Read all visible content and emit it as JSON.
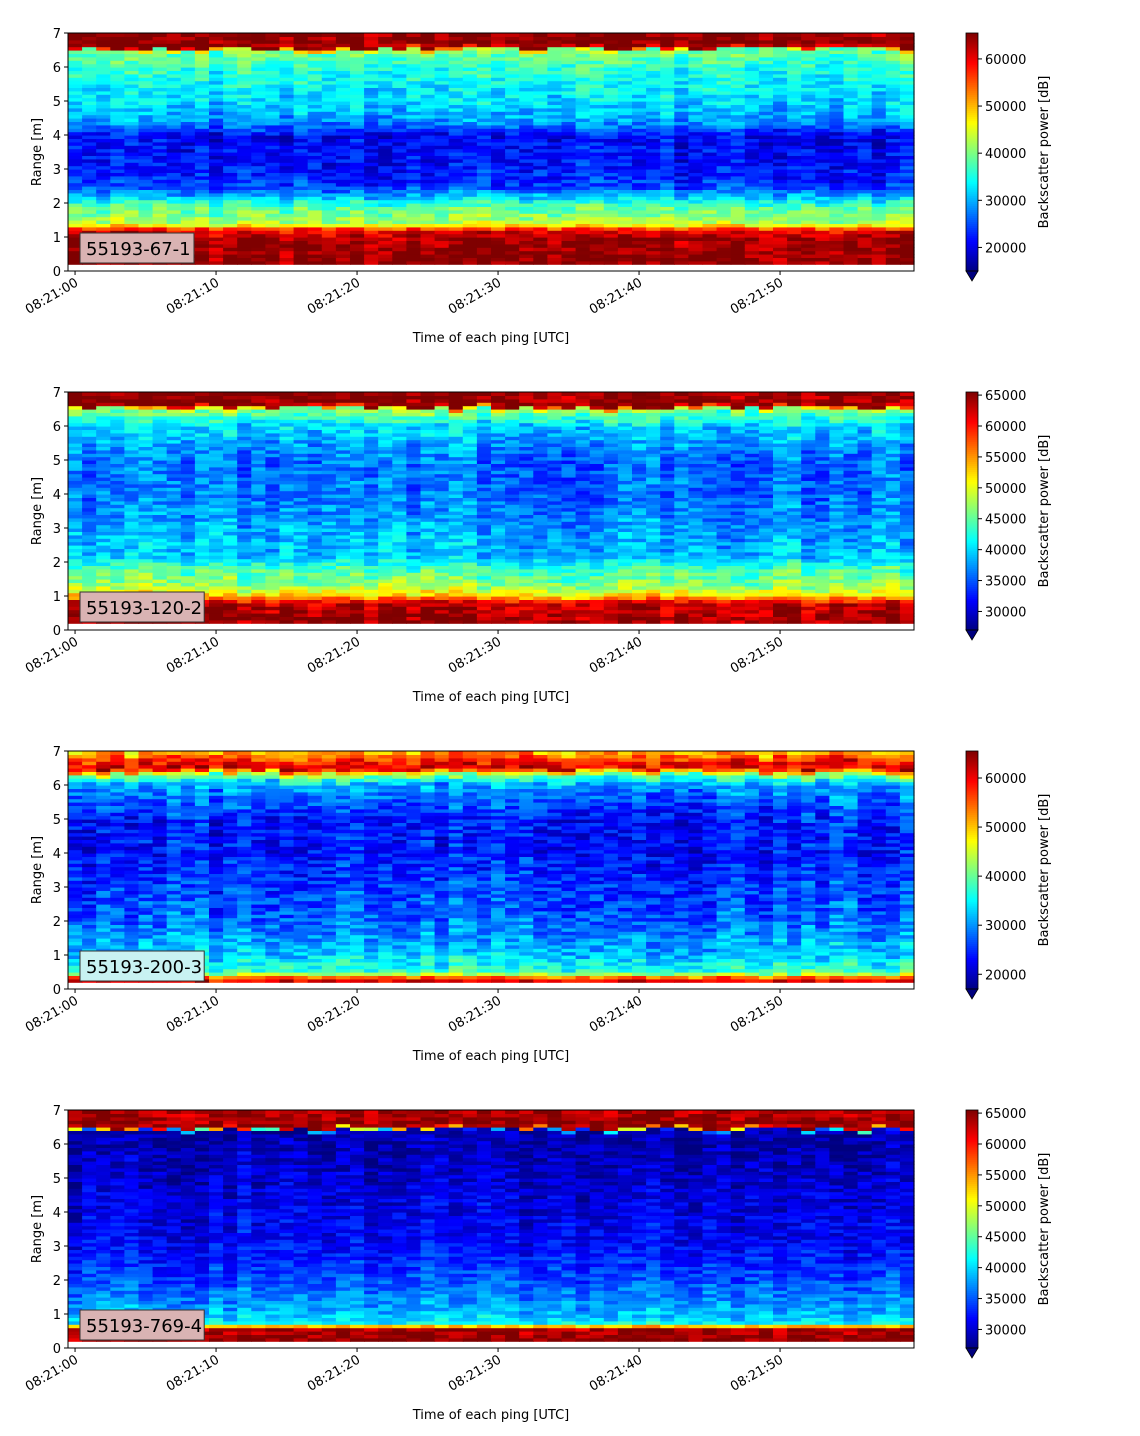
{
  "figure": {
    "background": "#ffffff",
    "colormap": "jet",
    "colormap_stops": [
      "#00007f",
      "#0000ff",
      "#007fff",
      "#00ffff",
      "#7fff7f",
      "#ffff00",
      "#ff7f00",
      "#ff0000",
      "#7f0000"
    ]
  },
  "chart_data": [
    {
      "type": "heatmap",
      "xlabel": "Time of each ping [UTC]",
      "ylabel": "Range [m]",
      "colorbar_label": "Backscatter power [dB]",
      "annotation": "55193-67-1",
      "annotation_bg": "#d9b3b3",
      "x_ticks": [
        "08:21:00",
        "08:21:10",
        "08:21:20",
        "08:21:30",
        "08:21:40",
        "08:21:50"
      ],
      "x_tick_seconds": [
        0,
        10,
        20,
        30,
        40,
        50
      ],
      "xlim_seconds": [
        -0.5,
        59.5
      ],
      "y_ticks": [
        0,
        1,
        2,
        3,
        4,
        5,
        6,
        7
      ],
      "ylim": [
        0,
        7
      ],
      "colorbar_ticks": [
        20000,
        30000,
        40000,
        50000,
        60000
      ],
      "clim": [
        15000,
        65500
      ],
      "colorbar_extend": "min",
      "profile": [
        {
          "y": 0.2,
          "v": 65000
        },
        {
          "y": 0.9,
          "v": 64000
        },
        {
          "y": 1.2,
          "v": 60000
        },
        {
          "y": 1.4,
          "v": 43000
        },
        {
          "y": 1.9,
          "v": 38000
        },
        {
          "y": 2.2,
          "v": 31000
        },
        {
          "y": 2.5,
          "v": 24000
        },
        {
          "y": 3.0,
          "v": 22000
        },
        {
          "y": 4.0,
          "v": 21000
        },
        {
          "y": 4.4,
          "v": 29000
        },
        {
          "y": 5.0,
          "v": 32000
        },
        {
          "y": 6.0,
          "v": 36000
        },
        {
          "y": 6.5,
          "v": 40000
        },
        {
          "y": 6.6,
          "v": 65000
        },
        {
          "y": 7.0,
          "v": 65000
        }
      ],
      "noise": 5000
    },
    {
      "type": "heatmap",
      "xlabel": "Time of each ping [UTC]",
      "ylabel": "Range [m]",
      "colorbar_label": "Backscatter power [dB]",
      "annotation": "55193-120-2",
      "annotation_bg": "#d9b3b3",
      "x_ticks": [
        "08:21:00",
        "08:21:10",
        "08:21:20",
        "08:21:30",
        "08:21:40",
        "08:21:50"
      ],
      "x_tick_seconds": [
        0,
        10,
        20,
        30,
        40,
        50
      ],
      "xlim_seconds": [
        -0.5,
        59.5
      ],
      "y_ticks": [
        0,
        1,
        2,
        3,
        4,
        5,
        6,
        7
      ],
      "ylim": [
        0,
        7
      ],
      "colorbar_ticks": [
        30000,
        35000,
        40000,
        45000,
        50000,
        55000,
        60000,
        65000
      ],
      "clim": [
        27000,
        65500
      ],
      "colorbar_extend": "min",
      "profile": [
        {
          "y": 0.2,
          "v": 65000
        },
        {
          "y": 0.8,
          "v": 63000
        },
        {
          "y": 1.0,
          "v": 53000
        },
        {
          "y": 1.3,
          "v": 47000
        },
        {
          "y": 1.8,
          "v": 44000
        },
        {
          "y": 2.2,
          "v": 39000
        },
        {
          "y": 3.0,
          "v": 38000
        },
        {
          "y": 4.0,
          "v": 36000
        },
        {
          "y": 5.0,
          "v": 36000
        },
        {
          "y": 6.0,
          "v": 40000
        },
        {
          "y": 6.5,
          "v": 47000
        },
        {
          "y": 6.6,
          "v": 65000
        },
        {
          "y": 7.0,
          "v": 65000
        }
      ],
      "noise": 4000
    },
    {
      "type": "heatmap",
      "xlabel": "Time of each ping [UTC]",
      "ylabel": "Range [m]",
      "colorbar_label": "Backscatter power [dB]",
      "annotation": "55193-200-3",
      "annotation_bg": "#c8f2f2",
      "x_ticks": [
        "08:21:00",
        "08:21:10",
        "08:21:20",
        "08:21:30",
        "08:21:40",
        "08:21:50"
      ],
      "x_tick_seconds": [
        0,
        10,
        20,
        30,
        40,
        50
      ],
      "xlim_seconds": [
        -0.5,
        59.5
      ],
      "y_ticks": [
        0,
        1,
        2,
        3,
        4,
        5,
        6,
        7
      ],
      "ylim": [
        0,
        7
      ],
      "colorbar_ticks": [
        20000,
        30000,
        40000,
        50000,
        60000
      ],
      "clim": [
        17000,
        65500
      ],
      "colorbar_extend": "min",
      "profile": [
        {
          "y": 0.1,
          "v": 64000
        },
        {
          "y": 0.3,
          "v": 60000
        },
        {
          "y": 0.5,
          "v": 38000
        },
        {
          "y": 1.0,
          "v": 33000
        },
        {
          "y": 2.0,
          "v": 28000
        },
        {
          "y": 3.0,
          "v": 26000
        },
        {
          "y": 4.0,
          "v": 24000
        },
        {
          "y": 5.0,
          "v": 24000
        },
        {
          "y": 6.0,
          "v": 31000
        },
        {
          "y": 6.3,
          "v": 42000
        },
        {
          "y": 6.5,
          "v": 62000
        },
        {
          "y": 6.8,
          "v": 56000
        },
        {
          "y": 7.0,
          "v": 50000
        }
      ],
      "noise": 5500
    },
    {
      "type": "heatmap",
      "xlabel": "Time of each ping [UTC]",
      "ylabel": "Range [m]",
      "colorbar_label": "Backscatter power [dB]",
      "annotation": "55193-769-4",
      "annotation_bg": "#d9b3b3",
      "x_ticks": [
        "08:21:00",
        "08:21:10",
        "08:21:20",
        "08:21:30",
        "08:21:40",
        "08:21:50"
      ],
      "x_tick_seconds": [
        0,
        10,
        20,
        30,
        40,
        50
      ],
      "xlim_seconds": [
        -0.5,
        59.5
      ],
      "y_ticks": [
        0,
        1,
        2,
        3,
        4,
        5,
        6,
        7
      ],
      "ylim": [
        0,
        7
      ],
      "colorbar_ticks": [
        30000,
        35000,
        40000,
        45000,
        50000,
        55000,
        60000,
        65000
      ],
      "clim": [
        27000,
        65500
      ],
      "colorbar_extend": "min",
      "profile": [
        {
          "y": 0.2,
          "v": 65000
        },
        {
          "y": 0.6,
          "v": 64000
        },
        {
          "y": 0.7,
          "v": 42000
        },
        {
          "y": 1.0,
          "v": 39000
        },
        {
          "y": 2.0,
          "v": 35000
        },
        {
          "y": 3.0,
          "v": 32000
        },
        {
          "y": 4.0,
          "v": 31000
        },
        {
          "y": 5.0,
          "v": 30000
        },
        {
          "y": 6.0,
          "v": 29000
        },
        {
          "y": 6.4,
          "v": 28500
        },
        {
          "y": 6.5,
          "v": 65000
        },
        {
          "y": 7.0,
          "v": 64000
        }
      ],
      "noise": 3500
    }
  ]
}
